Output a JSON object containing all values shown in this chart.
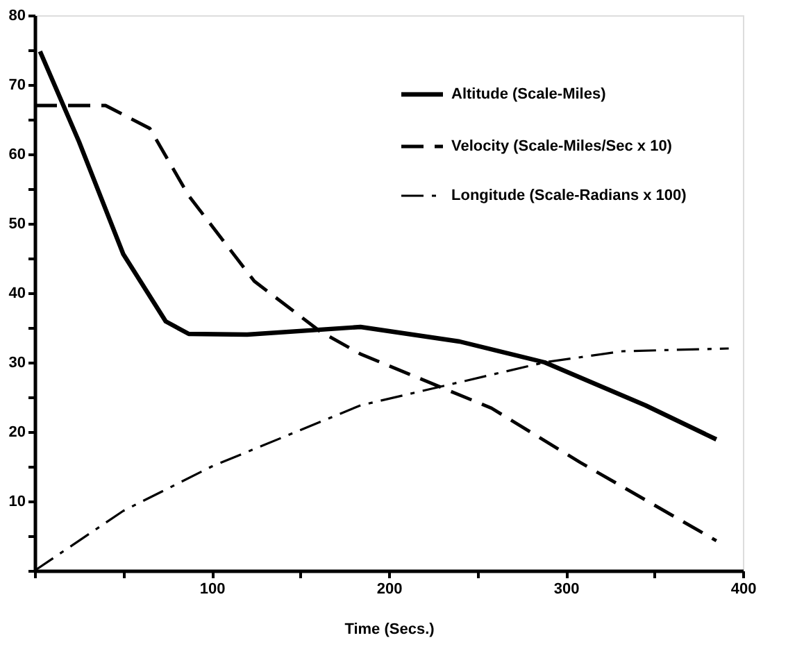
{
  "chart_data": {
    "type": "line",
    "xlabel": "Time (Secs.)",
    "series": [
      {
        "name": "Altitude (Scale-Miles)",
        "color": "#000000",
        "line_style": "solid",
        "x": [
          3,
          25,
          50,
          74,
          87,
          120,
          184,
          240,
          288,
          345,
          385
        ],
        "values": [
          74.8,
          61.8,
          45.6,
          35.9,
          34.1,
          34,
          35.1,
          33,
          30,
          23.8,
          18.9
        ]
      },
      {
        "name": "Velocity (Scale-Miles/Sec x 10)",
        "color": "#000000",
        "line_style": "dashed",
        "x": [
          0,
          40,
          65,
          87,
          124,
          161,
          184,
          258,
          308,
          385
        ],
        "values": [
          67,
          67,
          63.7,
          54,
          41.7,
          34.5,
          31.2,
          23.4,
          15.6,
          4.3
        ]
      },
      {
        "name": "Longitude (Scale-Radians x 100)",
        "color": "#000000",
        "line_style": "dashdot",
        "x": [
          0,
          50,
          100,
          184,
          288,
          332,
          392
        ],
        "values": [
          0,
          8.6,
          15,
          23.8,
          30,
          31.6,
          32
        ]
      }
    ],
    "xlim": [
      0,
      400
    ],
    "ylim": [
      0,
      80
    ],
    "xticks": [
      {
        "value": 0,
        "label": null
      },
      {
        "value": 50,
        "label": null
      },
      100,
      {
        "value": 150,
        "label": null
      },
      200,
      {
        "value": 250,
        "label": null
      },
      300,
      {
        "value": 350,
        "label": null
      },
      400
    ],
    "yticks": [
      {
        "value": 0,
        "label": null
      },
      {
        "value": 5,
        "label": null
      },
      10,
      {
        "value": 15,
        "label": null
      },
      20,
      {
        "value": 25,
        "label": null
      },
      30,
      {
        "value": 35,
        "label": null
      },
      40,
      {
        "value": 45,
        "label": null
      },
      50,
      {
        "value": 55,
        "label": null
      },
      60,
      {
        "value": 65,
        "label": null
      },
      70,
      {
        "value": 75,
        "label": null
      },
      80
    ],
    "grid": false,
    "legend": "top right",
    "marker": "none"
  }
}
